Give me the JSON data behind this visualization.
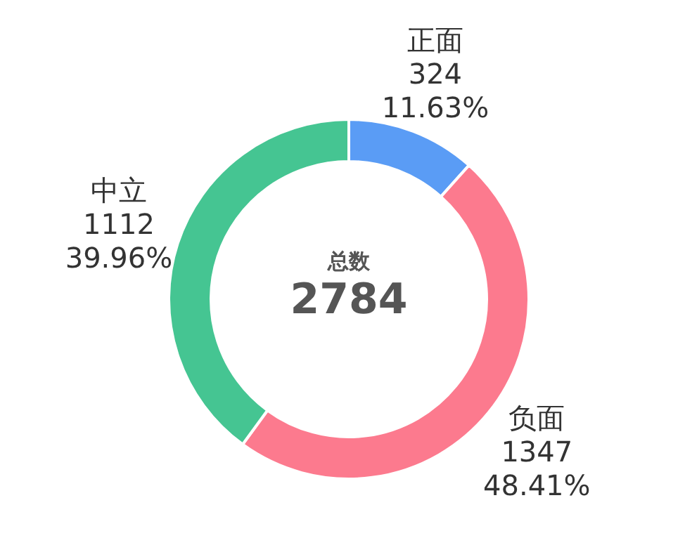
{
  "chart_data": {
    "type": "donut",
    "categories": [
      "正面",
      "负面",
      "中立"
    ],
    "values": [
      11.63,
      48.41,
      39.96
    ],
    "colors": [
      "#5a9cf5",
      "#fc7a8e",
      "#45c592"
    ],
    "value_labels": [
      "324\n11.63%",
      "1347\n48.41%",
      "1112\n39.96%"
    ],
    "annotations": [
      "总数",
      "2784"
    ]
  }
}
